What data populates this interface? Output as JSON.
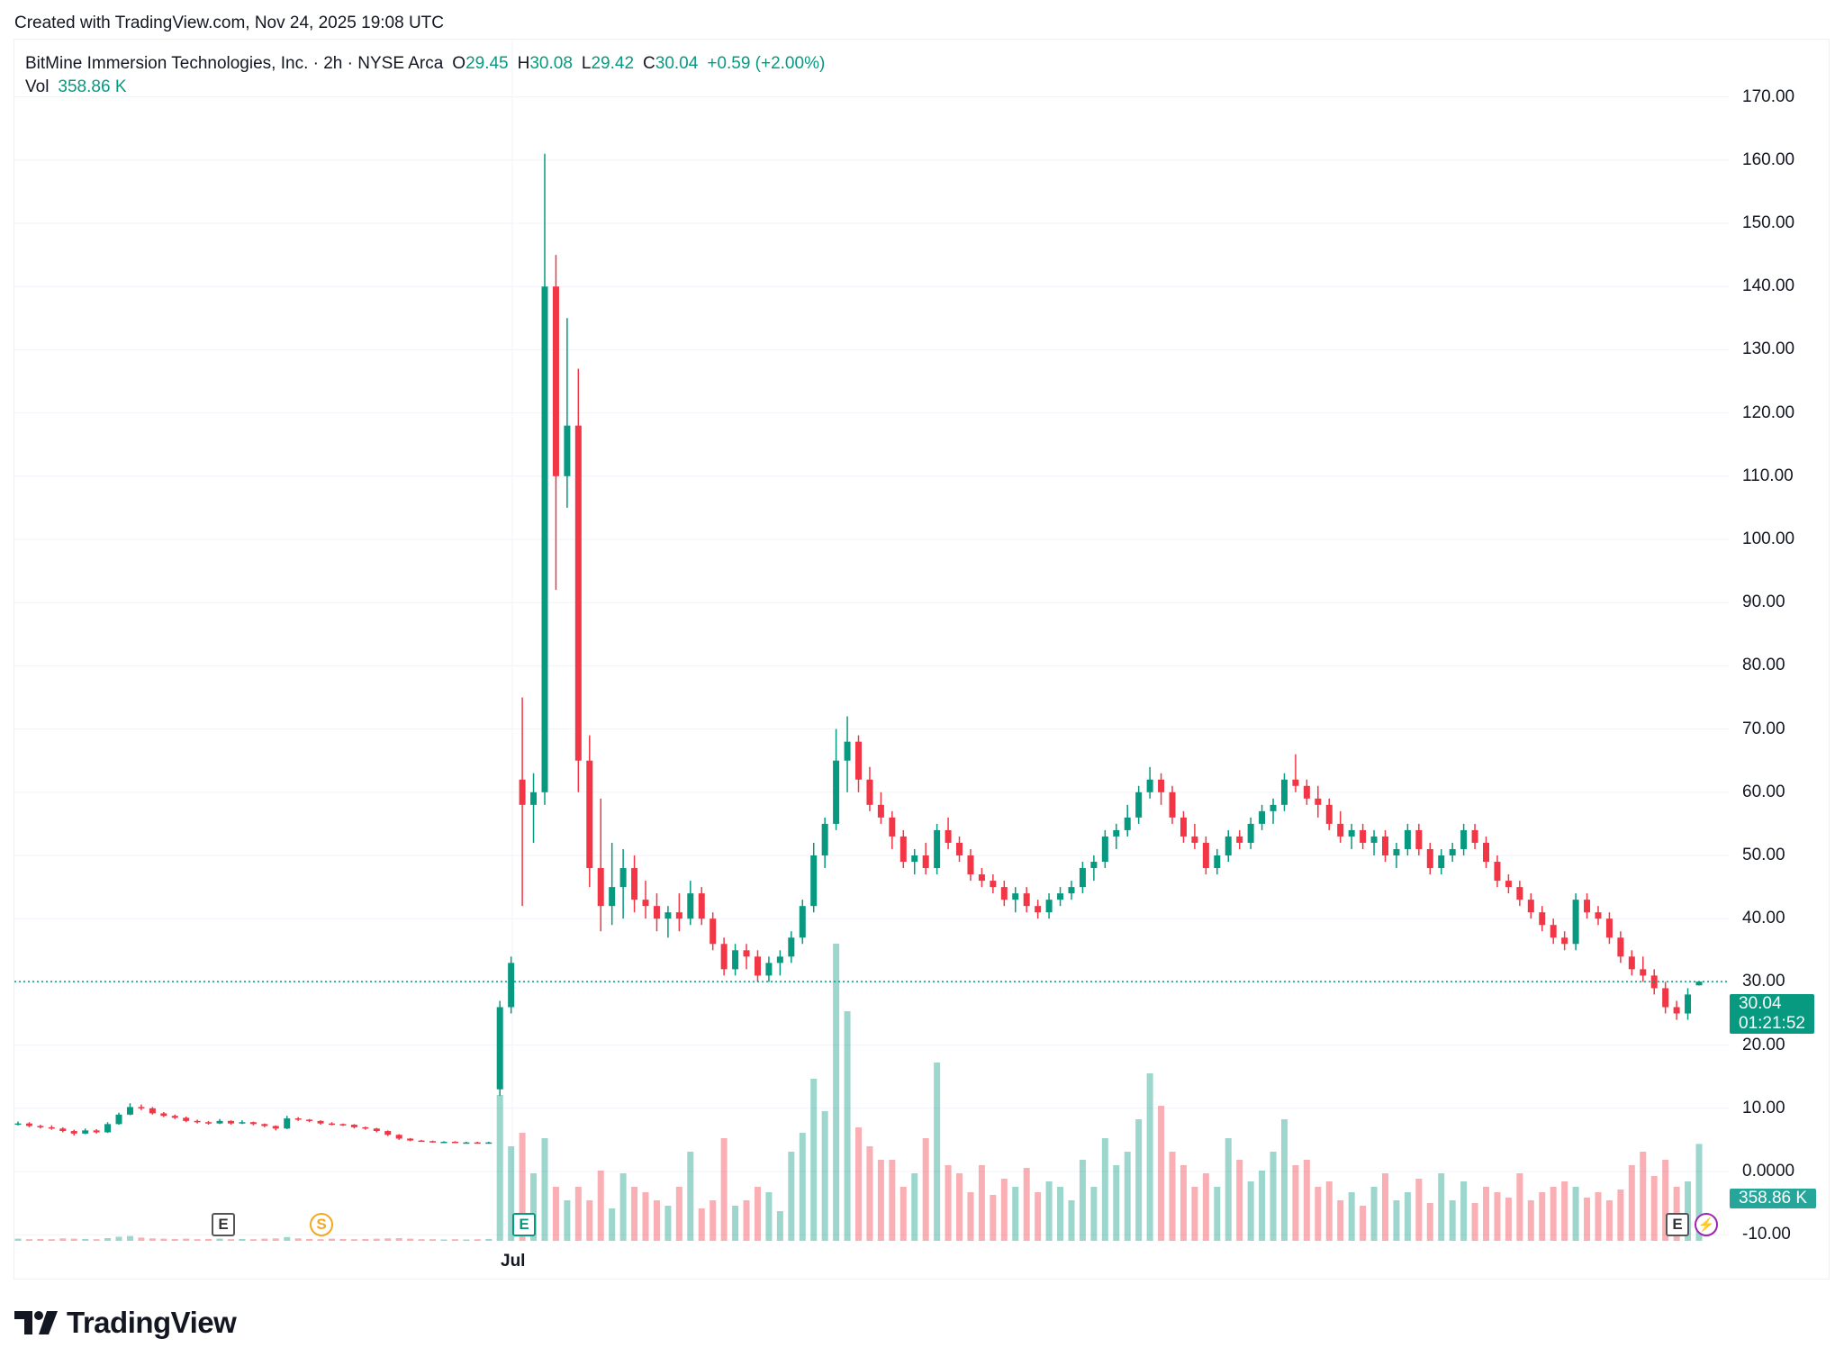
{
  "header": {
    "created": "Created with TradingView.com, Nov 24, 2025 19:08 UTC"
  },
  "legend": {
    "symbol": "BitMine Immersion Technologies, Inc. · 2h · NYSE Arca",
    "o_label": "O",
    "o": "29.45",
    "h_label": "H",
    "h": "30.08",
    "l_label": "L",
    "l": "29.42",
    "c_label": "C",
    "c": "30.04",
    "change": "+0.59 (+2.00%)",
    "vol_label": "Vol",
    "vol": "358.86 K"
  },
  "price_tag": {
    "price": "30.04",
    "countdown": "01:21:52"
  },
  "volume_tag": "358.86 K",
  "x_axis": {
    "labels": [
      "Jul"
    ]
  },
  "markers": {
    "earnings": "E",
    "split": "S"
  },
  "brand": "TradingView",
  "colors": {
    "up": "#089981",
    "down": "#F23645",
    "grid": "#f0f3fa",
    "text": "#131722"
  },
  "chart_data": {
    "type": "candlestick",
    "title": "BitMine Immersion Technologies, Inc. · 2h · NYSE Arca",
    "ylim": [
      -10,
      170
    ],
    "y_ticks": [
      "170.00",
      "160.00",
      "150.00",
      "140.00",
      "130.00",
      "120.00",
      "110.00",
      "100.00",
      "90.00",
      "80.00",
      "70.00",
      "60.00",
      "50.00",
      "40.00",
      "30.00",
      "20.00",
      "10.00",
      "0.0000",
      "-10.00"
    ],
    "grid": true,
    "last_price": 30.04,
    "volume_unit": "K",
    "ohlc": [
      [
        7.6,
        7.9,
        7.3,
        7.6
      ],
      [
        7.6,
        7.8,
        7.0,
        7.2
      ],
      [
        7.2,
        7.4,
        6.8,
        7.0
      ],
      [
        7.0,
        7.3,
        6.6,
        6.8
      ],
      [
        6.8,
        7.0,
        6.2,
        6.4
      ],
      [
        6.4,
        6.6,
        5.7,
        6.0
      ],
      [
        6.0,
        6.8,
        5.9,
        6.5
      ],
      [
        6.5,
        6.7,
        6.0,
        6.2
      ],
      [
        6.2,
        7.8,
        6.1,
        7.5
      ],
      [
        7.5,
        9.3,
        7.4,
        9.0
      ],
      [
        9.0,
        10.8,
        8.9,
        10.2
      ],
      [
        10.2,
        10.6,
        9.7,
        10.0
      ],
      [
        10.0,
        10.2,
        9.0,
        9.2
      ],
      [
        9.2,
        9.4,
        8.6,
        8.8
      ],
      [
        8.8,
        9.0,
        8.3,
        8.5
      ],
      [
        8.5,
        8.7,
        7.8,
        8.0
      ],
      [
        8.0,
        8.2,
        7.6,
        7.8
      ],
      [
        7.8,
        8.0,
        7.4,
        7.6
      ],
      [
        7.6,
        8.3,
        7.5,
        8.0
      ],
      [
        8.0,
        8.1,
        7.4,
        7.6
      ],
      [
        7.6,
        8.1,
        7.5,
        7.8
      ],
      [
        7.8,
        7.9,
        7.3,
        7.5
      ],
      [
        7.5,
        7.6,
        7.0,
        7.2
      ],
      [
        7.2,
        7.3,
        6.5,
        6.8
      ],
      [
        6.8,
        8.8,
        6.7,
        8.4
      ],
      [
        8.4,
        8.6,
        8.0,
        8.2
      ],
      [
        8.2,
        8.3,
        7.8,
        8.0
      ],
      [
        8.0,
        8.1,
        7.4,
        7.6
      ],
      [
        7.6,
        7.8,
        7.3,
        7.5
      ],
      [
        7.5,
        7.6,
        7.2,
        7.4
      ],
      [
        7.4,
        7.5,
        6.8,
        7.0
      ],
      [
        7.0,
        7.1,
        6.6,
        6.8
      ],
      [
        6.8,
        6.9,
        6.2,
        6.4
      ],
      [
        6.4,
        6.5,
        5.6,
        5.8
      ],
      [
        5.8,
        5.9,
        5.0,
        5.2
      ],
      [
        5.2,
        5.3,
        4.8,
        4.9
      ],
      [
        4.9,
        5.0,
        4.7,
        4.8
      ],
      [
        4.8,
        4.9,
        4.6,
        4.7
      ],
      [
        4.7,
        4.8,
        4.6,
        4.7
      ],
      [
        4.7,
        4.8,
        4.5,
        4.6
      ],
      [
        4.6,
        4.7,
        4.5,
        4.6
      ],
      [
        4.6,
        4.7,
        4.4,
        4.5
      ],
      [
        4.5,
        4.7,
        4.4,
        4.6
      ],
      [
        13,
        27,
        12,
        26
      ],
      [
        26,
        34,
        25,
        33
      ],
      [
        62,
        75,
        42,
        58
      ],
      [
        58,
        63,
        52,
        60
      ],
      [
        60,
        161,
        58,
        140
      ],
      [
        140,
        145,
        92,
        110
      ],
      [
        110,
        135,
        105,
        118
      ],
      [
        118,
        127,
        60,
        65
      ],
      [
        65,
        69,
        45,
        48
      ],
      [
        48,
        59,
        38,
        42
      ],
      [
        42,
        52,
        39,
        45
      ],
      [
        45,
        51,
        40,
        48
      ],
      [
        48,
        50,
        41,
        43
      ],
      [
        43,
        46,
        40,
        42
      ],
      [
        42,
        44,
        38,
        40
      ],
      [
        40,
        42,
        37,
        41
      ],
      [
        41,
        44,
        38,
        40
      ],
      [
        40,
        46,
        39,
        44
      ],
      [
        44,
        45,
        39,
        40
      ],
      [
        40,
        41,
        35,
        36
      ],
      [
        36,
        37,
        31,
        32
      ],
      [
        32,
        36,
        31,
        35
      ],
      [
        35,
        36,
        32,
        34
      ],
      [
        34,
        35,
        30,
        31
      ],
      [
        31,
        34,
        30,
        33
      ],
      [
        33,
        35,
        31,
        34
      ],
      [
        34,
        38,
        33,
        37
      ],
      [
        37,
        43,
        36,
        42
      ],
      [
        42,
        52,
        41,
        50
      ],
      [
        50,
        56,
        48,
        55
      ],
      [
        55,
        70,
        54,
        65
      ],
      [
        65,
        72,
        60,
        68
      ],
      [
        68,
        69,
        60,
        62
      ],
      [
        62,
        64,
        57,
        58
      ],
      [
        58,
        60,
        55,
        56
      ],
      [
        56,
        57,
        51,
        53
      ],
      [
        53,
        54,
        48,
        49
      ],
      [
        49,
        51,
        47,
        50
      ],
      [
        50,
        52,
        47,
        48
      ],
      [
        48,
        55,
        47,
        54
      ],
      [
        54,
        56,
        51,
        52
      ],
      [
        52,
        53,
        49,
        50
      ],
      [
        50,
        51,
        46,
        47
      ],
      [
        47,
        48,
        45,
        46
      ],
      [
        46,
        47,
        44,
        45
      ],
      [
        45,
        46,
        42,
        43
      ],
      [
        43,
        45,
        41,
        44
      ],
      [
        44,
        45,
        41,
        42
      ],
      [
        42,
        43,
        40,
        41
      ],
      [
        41,
        44,
        40,
        43
      ],
      [
        43,
        45,
        42,
        44
      ],
      [
        44,
        46,
        43,
        45
      ],
      [
        45,
        49,
        44,
        48
      ],
      [
        48,
        50,
        46,
        49
      ],
      [
        49,
        54,
        48,
        53
      ],
      [
        53,
        55,
        51,
        54
      ],
      [
        54,
        58,
        53,
        56
      ],
      [
        56,
        61,
        55,
        60
      ],
      [
        60,
        64,
        59,
        62
      ],
      [
        62,
        63,
        58,
        60
      ],
      [
        60,
        61,
        55,
        56
      ],
      [
        56,
        57,
        52,
        53
      ],
      [
        53,
        55,
        51,
        52
      ],
      [
        52,
        53,
        47,
        48
      ],
      [
        48,
        51,
        47,
        50
      ],
      [
        50,
        54,
        49,
        53
      ],
      [
        53,
        54,
        51,
        52
      ],
      [
        52,
        56,
        51,
        55
      ],
      [
        55,
        58,
        54,
        57
      ],
      [
        57,
        59,
        55,
        58
      ],
      [
        58,
        63,
        57,
        62
      ],
      [
        62,
        66,
        60,
        61
      ],
      [
        61,
        62,
        58,
        59
      ],
      [
        59,
        61,
        56,
        58
      ],
      [
        58,
        59,
        54,
        55
      ],
      [
        55,
        57,
        52,
        53
      ],
      [
        53,
        55,
        51,
        54
      ],
      [
        54,
        55,
        51,
        52
      ],
      [
        52,
        54,
        50,
        53
      ],
      [
        53,
        54,
        49,
        50
      ],
      [
        50,
        52,
        48,
        51
      ],
      [
        51,
        55,
        50,
        54
      ],
      [
        54,
        55,
        50,
        51
      ],
      [
        51,
        52,
        47,
        48
      ],
      [
        48,
        51,
        47,
        50
      ],
      [
        50,
        52,
        49,
        51
      ],
      [
        51,
        55,
        50,
        54
      ],
      [
        54,
        55,
        51,
        52
      ],
      [
        52,
        53,
        48,
        49
      ],
      [
        49,
        50,
        45,
        46
      ],
      [
        46,
        47,
        44,
        45
      ],
      [
        45,
        46,
        42,
        43
      ],
      [
        43,
        44,
        40,
        41
      ],
      [
        41,
        42,
        38,
        39
      ],
      [
        39,
        40,
        36,
        37
      ],
      [
        37,
        38,
        35,
        36
      ],
      [
        36,
        44,
        35,
        43
      ],
      [
        43,
        44,
        40,
        41
      ],
      [
        41,
        42,
        39,
        40
      ],
      [
        40,
        41,
        36,
        37
      ],
      [
        37,
        38,
        33,
        34
      ],
      [
        34,
        35,
        31,
        32
      ],
      [
        32,
        34,
        30,
        31
      ],
      [
        31,
        32,
        28,
        29
      ],
      [
        29,
        30,
        25,
        26
      ],
      [
        26,
        27,
        24,
        25
      ],
      [
        25,
        29,
        24,
        28
      ],
      [
        29.45,
        30.08,
        29.42,
        30.04
      ]
    ],
    "volume": [
      8,
      6,
      7,
      6,
      9,
      8,
      7,
      6,
      10,
      15,
      18,
      12,
      9,
      8,
      7,
      8,
      6,
      7,
      8,
      6,
      7,
      6,
      8,
      9,
      14,
      9,
      7,
      6,
      8,
      7,
      6,
      7,
      8,
      9,
      10,
      8,
      6,
      6,
      5,
      6,
      5,
      6,
      7,
      540,
      350,
      400,
      250,
      380,
      200,
      150,
      200,
      150,
      260,
      120,
      250,
      200,
      180,
      150,
      130,
      200,
      330,
      120,
      150,
      380,
      130,
      150,
      200,
      180,
      110,
      330,
      400,
      600,
      480,
      1100,
      850,
      420,
      350,
      300,
      300,
      200,
      250,
      380,
      660,
      280,
      250,
      180,
      280,
      170,
      230,
      200,
      270,
      180,
      220,
      200,
      150,
      300,
      200,
      380,
      280,
      330,
      450,
      620,
      500,
      330,
      280,
      200,
      250,
      200,
      380,
      300,
      220,
      260,
      330,
      450,
      280,
      300,
      200,
      220,
      150,
      180,
      130,
      200,
      250,
      150,
      180,
      230,
      140,
      250,
      150,
      220,
      140,
      200,
      180,
      160,
      250,
      150,
      180,
      200,
      220,
      200,
      160,
      180,
      150,
      190,
      280,
      330,
      240,
      300,
      200,
      220,
      358.86
    ]
  }
}
